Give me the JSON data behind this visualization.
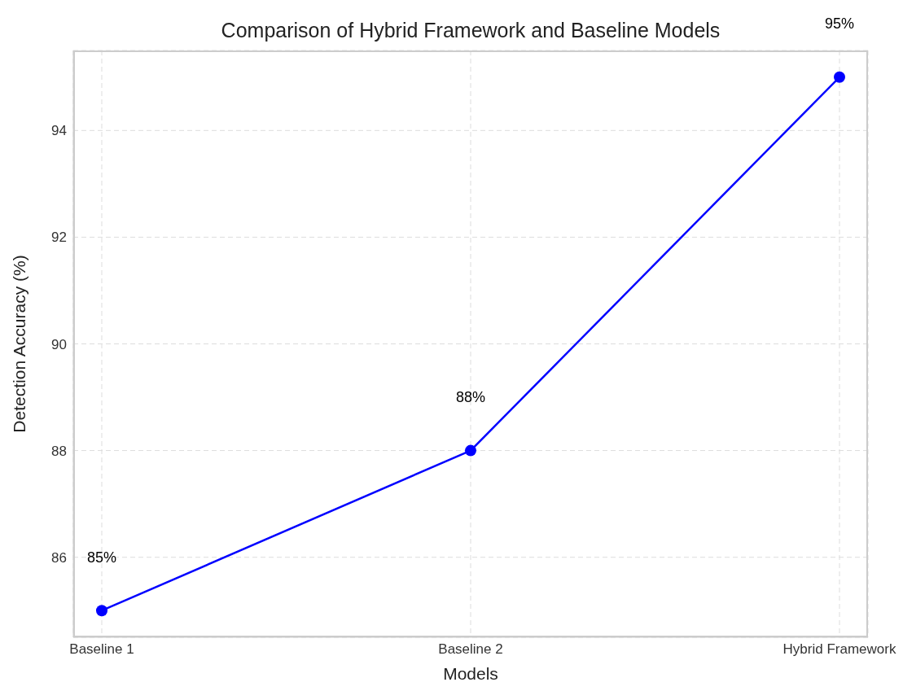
{
  "chart_data": {
    "type": "line",
    "title": "Comparison of Hybrid Framework and Baseline Models",
    "xlabel": "Models",
    "ylabel": "Detection Accuracy (%)",
    "categories": [
      "Baseline 1",
      "Baseline 2",
      "Hybrid Framework"
    ],
    "series": [
      {
        "color": "#0000ff",
        "values": [
          85,
          88,
          95
        ],
        "value_labels": [
          "85%",
          "88%",
          "95%"
        ]
      }
    ],
    "ylim": [
      84.5,
      95.5
    ],
    "yticks": [
      86,
      88,
      90,
      92,
      94
    ],
    "grid": true,
    "marker": "circle",
    "line_style": "solid"
  }
}
